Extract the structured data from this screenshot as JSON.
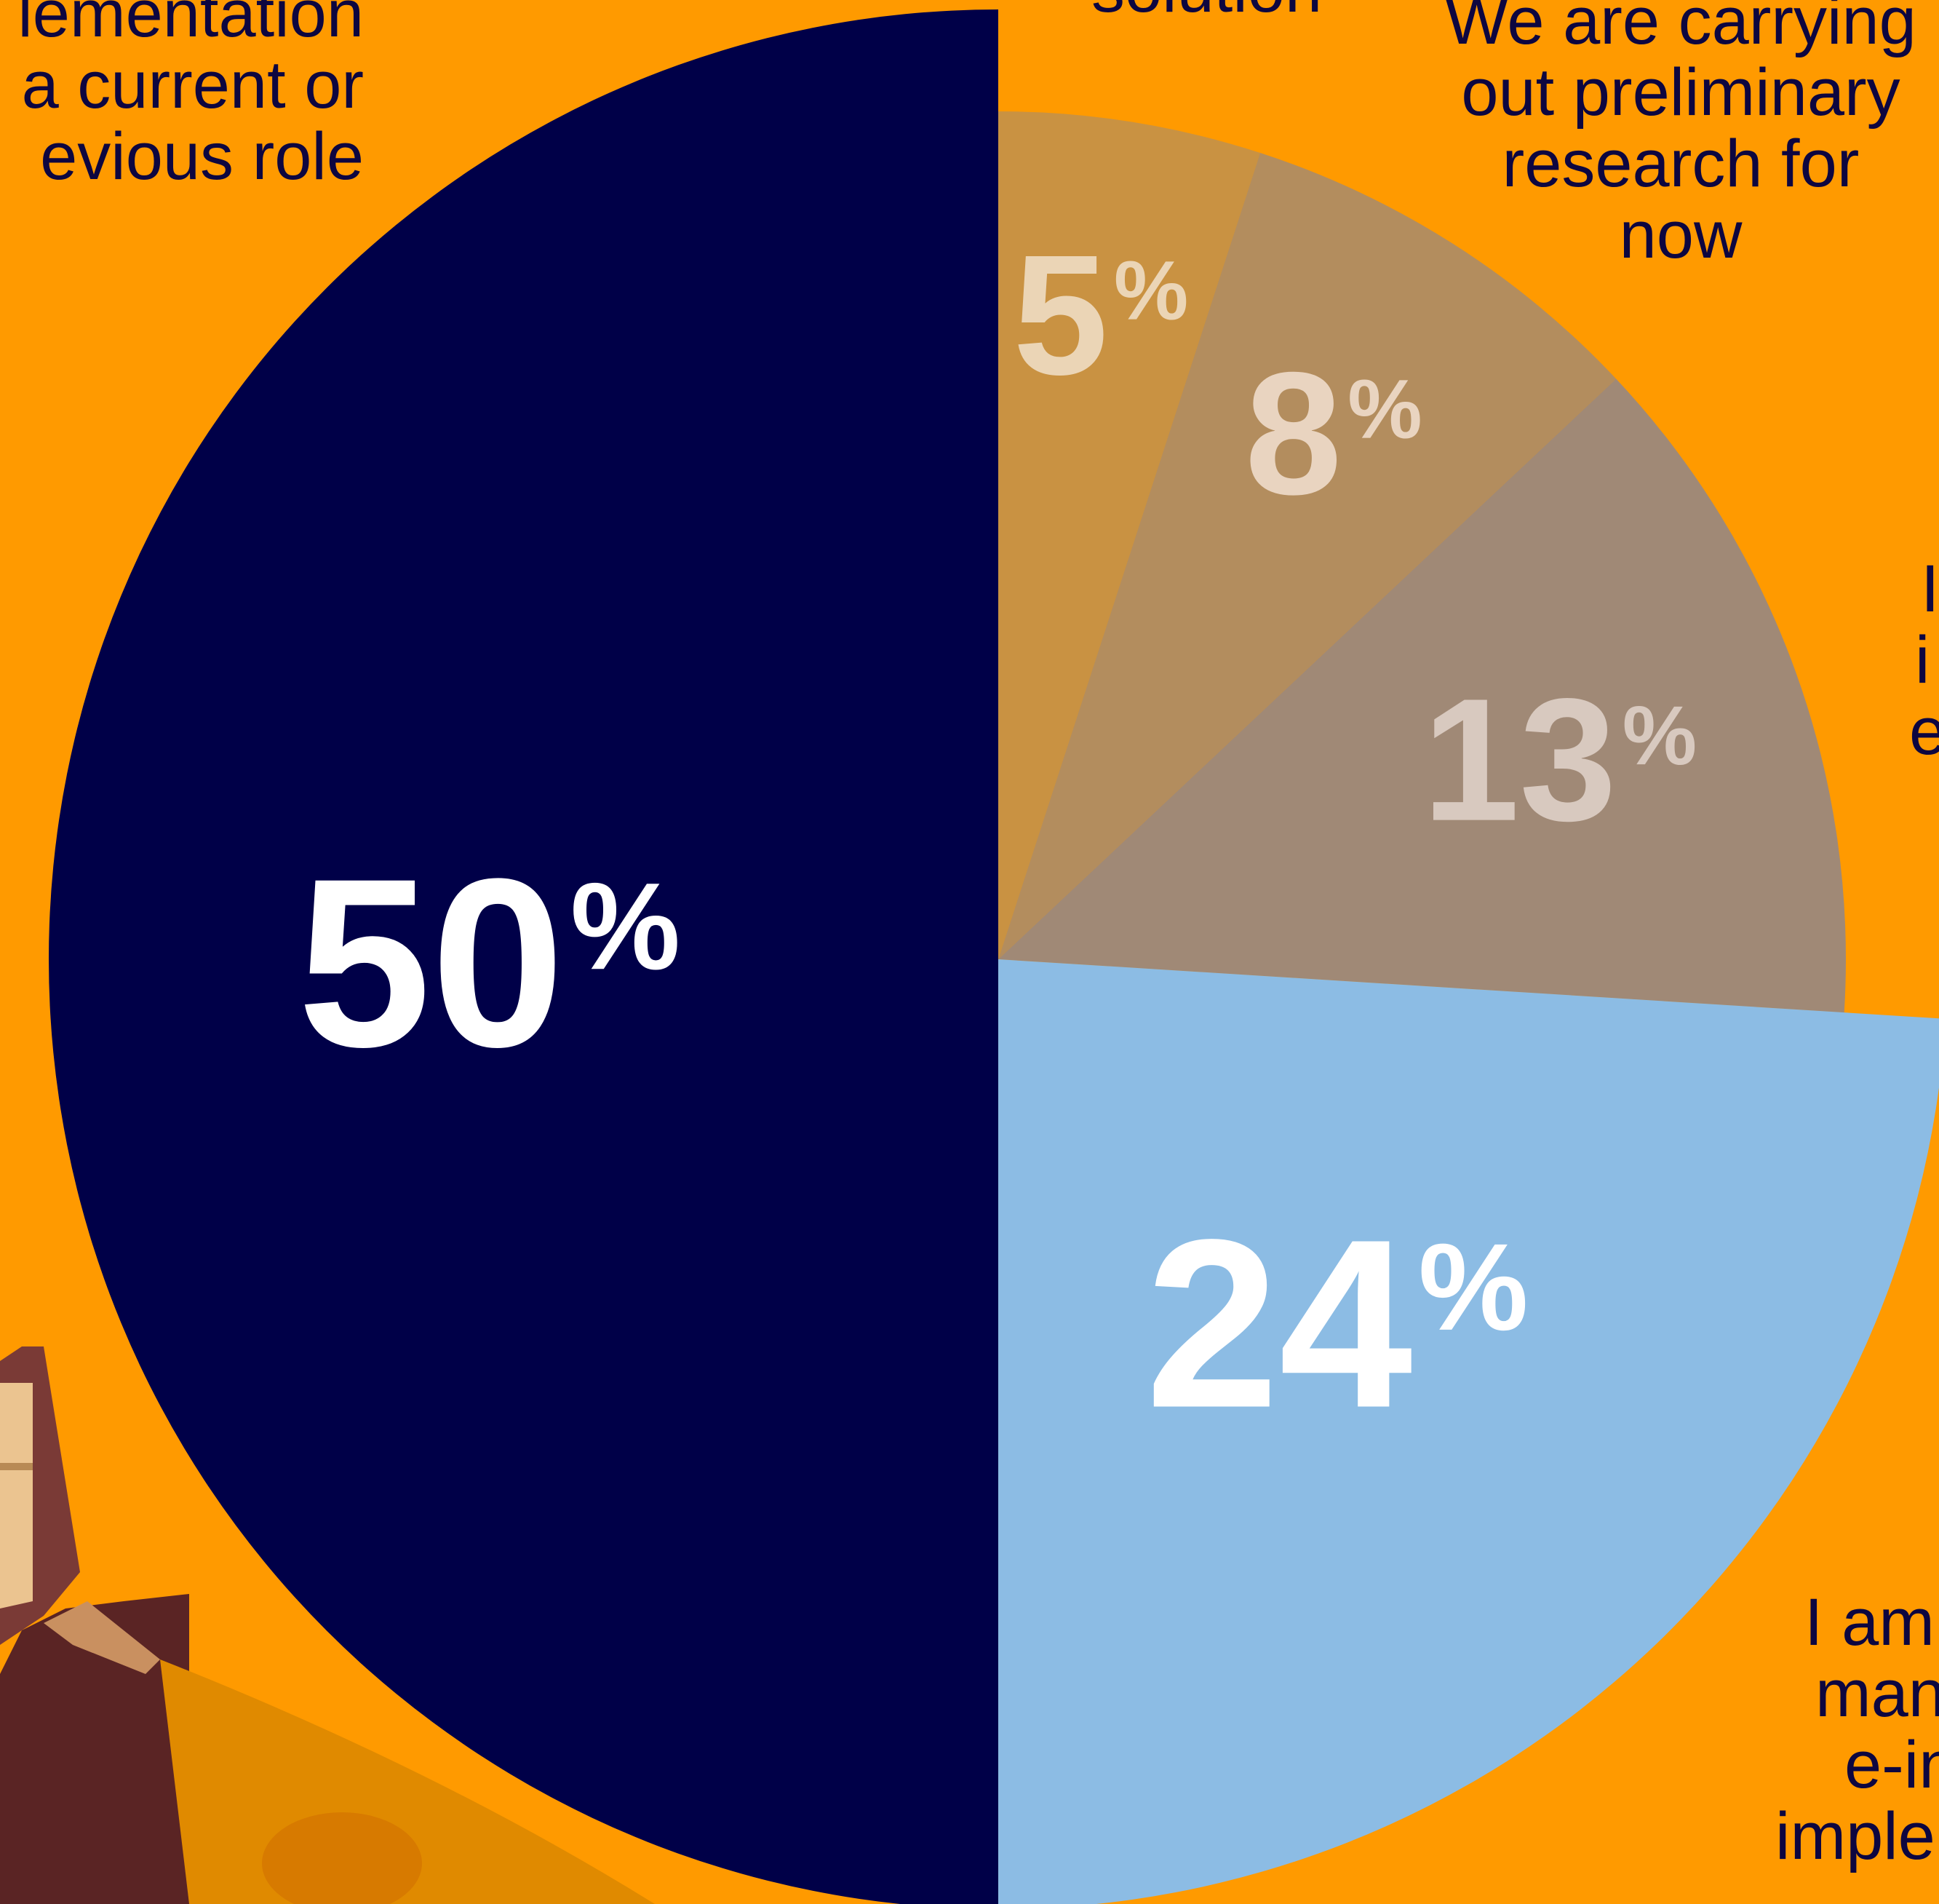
{
  "chart_data": {
    "type": "pie",
    "slices": [
      {
        "value": 50,
        "label": "50",
        "unit": "%",
        "color": "#000048",
        "label_color": "#FFFFFF"
      },
      {
        "value": 5,
        "label": "5",
        "unit": "%",
        "color": "#C99242",
        "label_color": "#EBD5B6"
      },
      {
        "value": 8,
        "label": "8",
        "unit": "%",
        "color": "#B38D5E",
        "label_color": "#E9D4C0"
      },
      {
        "value": 13,
        "label": "13",
        "unit": "%",
        "color": "#A08976",
        "label_color": "#D8C9BF"
      },
      {
        "value": 24,
        "label": "24",
        "unit": "%",
        "color": "#8CBCE4",
        "label_color": "#FFFFFF"
      }
    ],
    "background_color": "#FF9A00",
    "label_text_color": "#0D0640"
  },
  "labels": {
    "top_left": [
      "lementation",
      "a current or",
      "evious role"
    ],
    "top_center": [
      "solution"
    ],
    "top_right": [
      "We are carrying",
      "out preliminary",
      "research for",
      "now"
    ],
    "mid_right": [
      "I",
      "i",
      "e"
    ],
    "bottom_right": [
      "I am",
      "man",
      "e-in",
      "imple"
    ]
  }
}
